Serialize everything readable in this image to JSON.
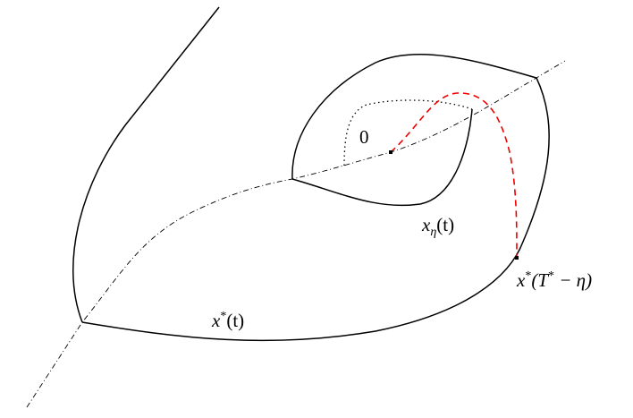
{
  "labels": {
    "origin": "0",
    "x_eta": {
      "base": "x",
      "sub": "η",
      "arg": "(t)"
    },
    "x_star_end": {
      "base": "x",
      "sup": "*",
      "open": "(T",
      "sup2": "*",
      "rest": " − η)"
    },
    "x_star": {
      "base": "x",
      "sup": "*",
      "arg": "(t)"
    }
  }
}
